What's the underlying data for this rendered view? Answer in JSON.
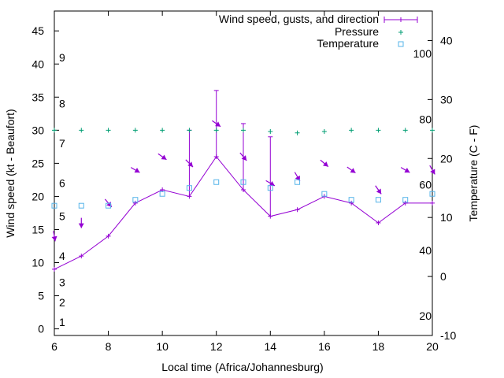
{
  "chart_data": {
    "type": "line",
    "xlabel": "Local time (Africa/Johannesburg)",
    "ylabel_left": "Wind speed (kt - Beaufort)",
    "ylabel_right": "Temperature (C - F)",
    "xlim": [
      6,
      20
    ],
    "ylim_left": [
      -1,
      48
    ],
    "ylim_right": [
      -10,
      45
    ],
    "x_ticks": [
      6,
      8,
      10,
      12,
      14,
      16,
      18,
      20
    ],
    "y_ticks_left": [
      0,
      5,
      10,
      15,
      20,
      25,
      30,
      35,
      40,
      45
    ],
    "y_ticks_right": [
      -10,
      0,
      10,
      20,
      30,
      40
    ],
    "beaufort_labels": [
      {
        "label": "1",
        "speed": 1
      },
      {
        "label": "2",
        "speed": 4
      },
      {
        "label": "3",
        "speed": 7
      },
      {
        "label": "4",
        "speed": 11
      },
      {
        "label": "5",
        "speed": 17
      },
      {
        "label": "6",
        "speed": 22
      },
      {
        "label": "7",
        "speed": 28
      },
      {
        "label": "8",
        "speed": 34
      },
      {
        "label": "9",
        "speed": 41
      }
    ],
    "fahrenheit_labels": [
      {
        "label": "20",
        "celsius": -6.67
      },
      {
        "label": "40",
        "celsius": 4.44
      },
      {
        "label": "60",
        "celsius": 15.56
      },
      {
        "label": "80",
        "celsius": 26.67
      },
      {
        "label": "100",
        "celsius": 37.78
      }
    ],
    "legend_position": "top-right",
    "grid": false,
    "colors": {
      "wind": "#9400d3",
      "pressure": "#009e73",
      "temperature": "#56b4e9"
    },
    "series": [
      {
        "name": "Wind speed, gusts, and direction",
        "x": [
          6,
          7,
          8,
          9,
          10,
          11,
          12,
          13,
          14,
          15,
          16,
          17,
          18,
          19,
          20
        ],
        "speed": [
          9,
          11,
          14,
          19,
          21,
          20,
          26,
          21,
          17,
          18,
          20,
          19,
          16,
          19,
          19
        ],
        "gust": [
          null,
          null,
          null,
          null,
          null,
          30,
          36,
          31,
          29,
          null,
          null,
          null,
          null,
          null,
          null
        ],
        "direction_deg": [
          350,
          0,
          320,
          300,
          305,
          315,
          305,
          320,
          300,
          330,
          310,
          305,
          325,
          300,
          330
        ]
      },
      {
        "name": "Pressure",
        "x": [
          6,
          7,
          8,
          9,
          10,
          11,
          12,
          13,
          14,
          15,
          16,
          17,
          18,
          19,
          20
        ],
        "y_left": [
          30,
          30,
          30,
          30,
          30,
          30,
          30,
          30,
          29.8,
          29.6,
          29.8,
          30,
          30,
          30,
          30
        ]
      },
      {
        "name": "Temperature",
        "x": [
          6,
          7,
          8,
          9,
          10,
          11,
          12,
          13,
          14,
          15,
          16,
          17,
          18,
          19,
          20
        ],
        "celsius": [
          12,
          12,
          12,
          13,
          14,
          15,
          16,
          16,
          15,
          16,
          14,
          13,
          13,
          13,
          14
        ]
      }
    ]
  }
}
